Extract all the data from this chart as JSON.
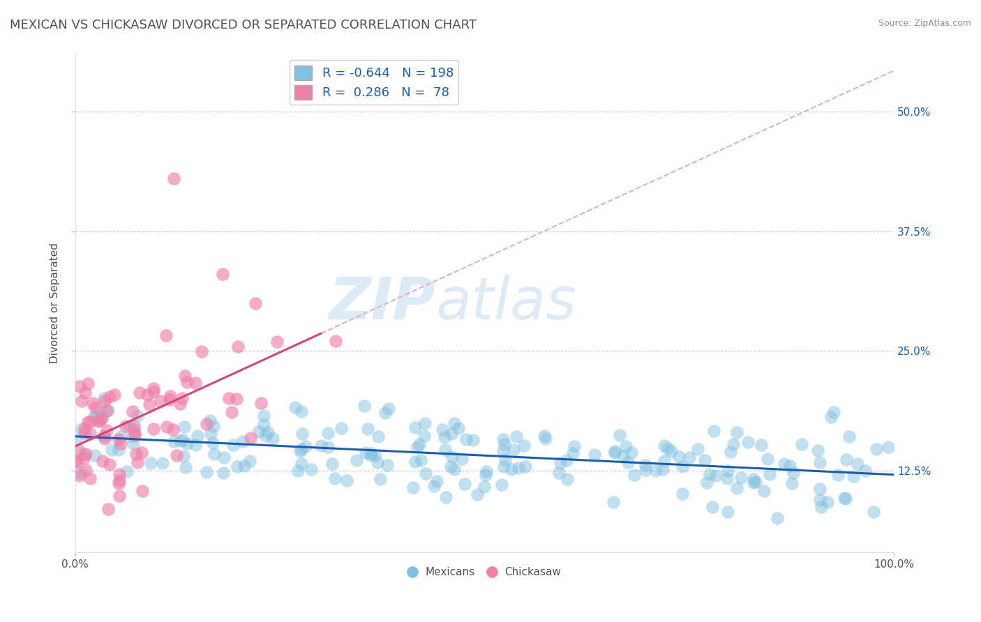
{
  "title": "MEXICAN VS CHICKASAW DIVORCED OR SEPARATED CORRELATION CHART",
  "source": "Source: ZipAtlas.com",
  "ylabel": "Divorced or Separated",
  "watermark_zip": "ZIP",
  "watermark_atlas": "atlas",
  "blue_R": -0.644,
  "blue_N": 198,
  "pink_R": 0.286,
  "pink_N": 78,
  "xlim": [
    0.0,
    1.0
  ],
  "ylim": [
    0.04,
    0.56
  ],
  "xtick_positions": [
    0.0,
    1.0
  ],
  "xtick_labels": [
    "0.0%",
    "100.0%"
  ],
  "yticks": [
    0.125,
    0.25,
    0.375,
    0.5
  ],
  "ytick_labels": [
    "12.5%",
    "25.0%",
    "37.5%",
    "50.0%"
  ],
  "blue_scatter_color": "#82c0e0",
  "blue_line_color": "#1a5fa8",
  "pink_scatter_color": "#f080a8",
  "pink_line_color": "#d04878",
  "pink_dash_color": "#e0b0c0",
  "grid_color": "#c8c8c8",
  "background_color": "#ffffff",
  "title_color": "#505050",
  "source_color": "#909090",
  "legend_label_blue": "Mexicans",
  "legend_label_pink": "Chickasaw",
  "title_fontsize": 13,
  "label_fontsize": 11,
  "tick_fontsize": 11,
  "legend_fontsize": 13,
  "seed": 7
}
